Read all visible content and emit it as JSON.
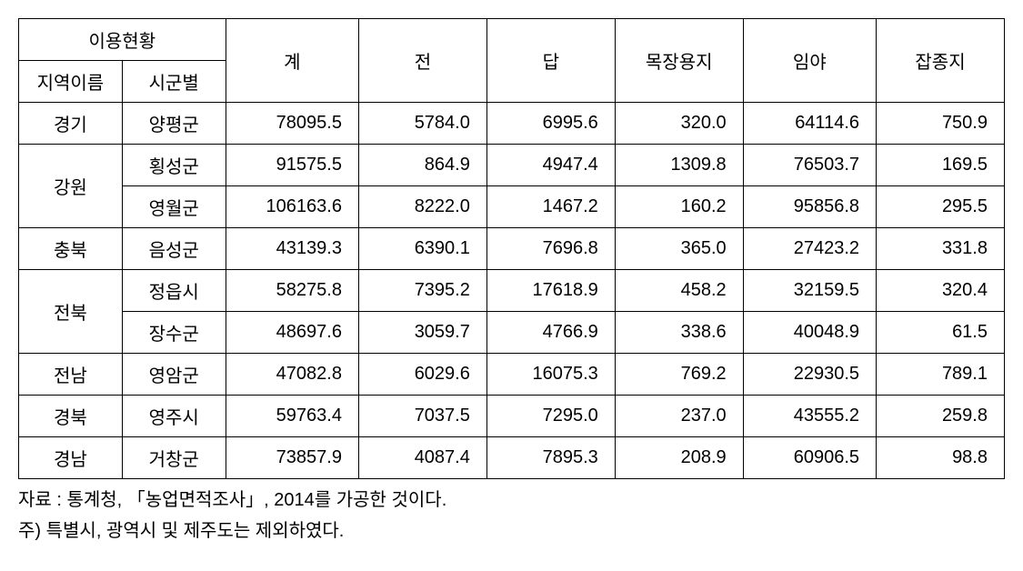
{
  "table": {
    "header": {
      "group_label": "이용현황",
      "sub1": "지역이름",
      "sub2": "시군별",
      "c_total": "계",
      "c3": "전",
      "c4": "답",
      "c5": "목장용지",
      "c6": "임야",
      "c7": "잡종지"
    },
    "rows": [
      {
        "region": "경기",
        "county": "양평군",
        "total": "78095.5",
        "v3": "5784.0",
        "v4": "6995.6",
        "v5": "320.0",
        "v6": "64114.6",
        "v7": "750.9",
        "rowspan": 1
      },
      {
        "region": "강원",
        "county": "횡성군",
        "total": "91575.5",
        "v3": "864.9",
        "v4": "4947.4",
        "v5": "1309.8",
        "v6": "76503.7",
        "v7": "169.5",
        "rowspan": 2
      },
      {
        "region": "",
        "county": "영월군",
        "total": "106163.6",
        "v3": "8222.0",
        "v4": "1467.2",
        "v5": "160.2",
        "v6": "95856.8",
        "v7": "295.5",
        "rowspan": 0
      },
      {
        "region": "충북",
        "county": "음성군",
        "total": "43139.3",
        "v3": "6390.1",
        "v4": "7696.8",
        "v5": "365.0",
        "v6": "27423.2",
        "v7": "331.8",
        "rowspan": 1
      },
      {
        "region": "전북",
        "county": "정읍시",
        "total": "58275.8",
        "v3": "7395.2",
        "v4": "17618.9",
        "v5": "458.2",
        "v6": "32159.5",
        "v7": "320.4",
        "rowspan": 2
      },
      {
        "region": "",
        "county": "장수군",
        "total": "48697.6",
        "v3": "3059.7",
        "v4": "4766.9",
        "v5": "338.6",
        "v6": "40048.9",
        "v7": "61.5",
        "rowspan": 0
      },
      {
        "region": "전남",
        "county": "영암군",
        "total": "47082.8",
        "v3": "6029.6",
        "v4": "16075.3",
        "v5": "769.2",
        "v6": "22930.5",
        "v7": "789.1",
        "rowspan": 1
      },
      {
        "region": "경북",
        "county": "영주시",
        "total": "59763.4",
        "v3": "7037.5",
        "v4": "7295.0",
        "v5": "237.0",
        "v6": "43555.2",
        "v7": "259.8",
        "rowspan": 1
      },
      {
        "region": "경남",
        "county": "거창군",
        "total": "73857.9",
        "v3": "4087.4",
        "v4": "7895.3",
        "v5": "208.9",
        "v6": "60906.5",
        "v7": "98.8",
        "rowspan": 1
      }
    ]
  },
  "notes": {
    "source": "자료 : 통계청, 「농업면적조사」, 2014를 가공한 것이다.",
    "footnote": "주) 특별시, 광역시 및 제주도는 제외하였다."
  },
  "style": {
    "font_family": "Malgun Gothic",
    "font_size_pt": 15,
    "border_color": "#000000",
    "background_color": "#ffffff",
    "text_color": "#000000",
    "num_align": "right",
    "label_align": "center"
  }
}
